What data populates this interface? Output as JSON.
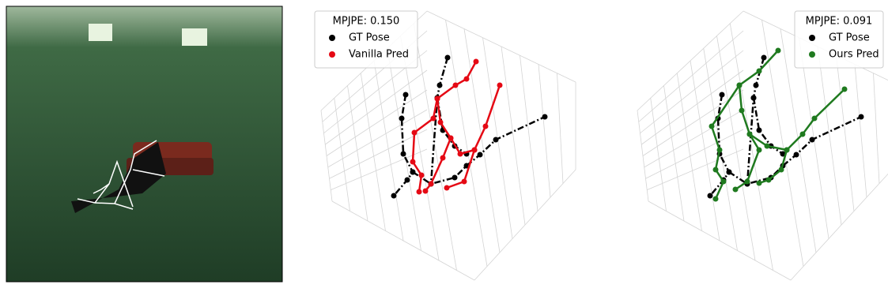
{
  "panels": [
    {
      "legend": {
        "title": "MPJPE: 0.150",
        "entries": [
          {
            "label": "GT Pose",
            "color": "#000000"
          },
          {
            "label": "Vanilla Pred",
            "color": "#e50914"
          }
        ]
      }
    },
    {
      "legend": {
        "title": "MPJPE: 0.091",
        "entries": [
          {
            "label": "GT Pose",
            "color": "#000000"
          },
          {
            "label": "Ours Pred",
            "color": "#1f7a1f"
          }
        ]
      }
    }
  ]
}
